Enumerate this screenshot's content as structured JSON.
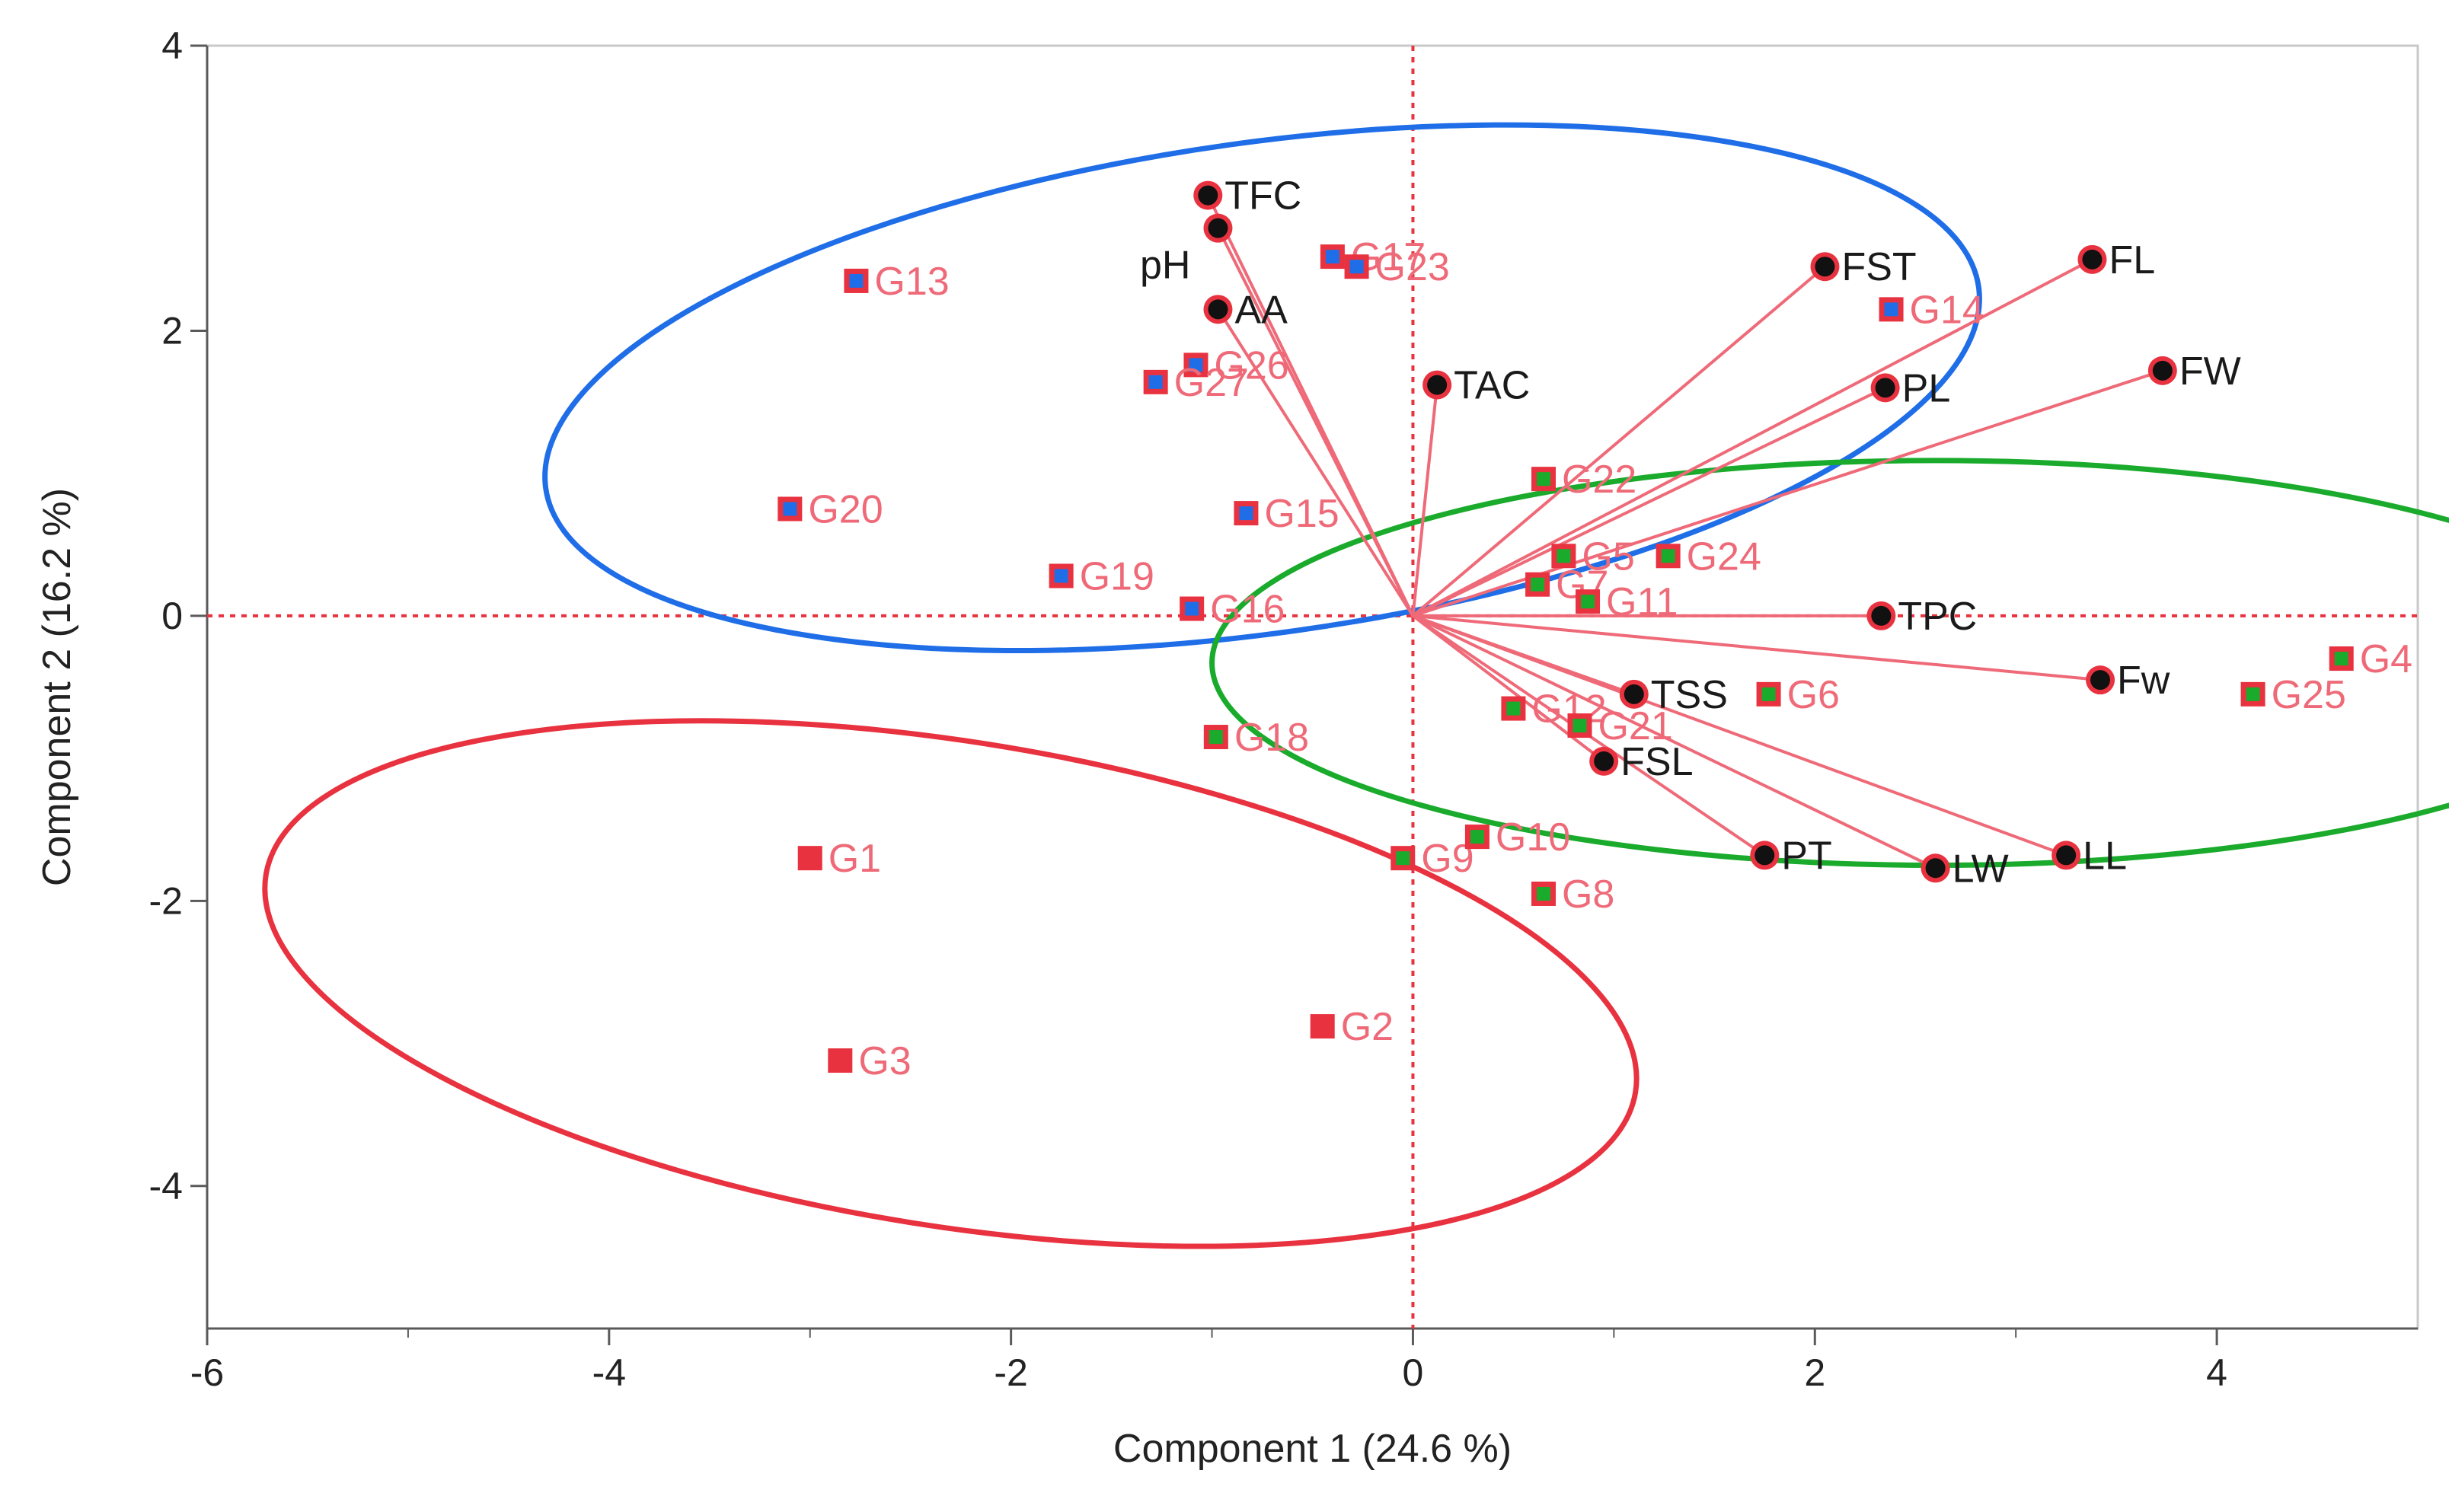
{
  "chart_data": {
    "type": "scatter",
    "subtype": "pca-biplot",
    "xlabel": "Component 1  (24.6 %)",
    "ylabel": "Component 2  (16.2 %)",
    "xlim": [
      -6,
      5
    ],
    "ylim": [
      -5,
      4
    ],
    "xticks": [
      -6,
      -4,
      -2,
      0,
      2,
      4
    ],
    "yticks": [
      -4,
      -2,
      0,
      2,
      4
    ],
    "reference_lines": {
      "x": 0,
      "y": 0,
      "style": "dotted",
      "color": "#e8323f"
    },
    "colors": {
      "cluster_blue": "#1f6ee8",
      "cluster_green": "#1aab2c",
      "cluster_red": "#e8323f",
      "vector": "#ef6a78",
      "genotype_label": "#ef6a78",
      "variable_point": "#111111",
      "variable_point_ring": "#e8323f"
    },
    "ellipses": [
      {
        "cluster": "blue",
        "cx": -0.75,
        "cy": 1.6,
        "rx": 3.6,
        "ry": 1.72,
        "angle_deg": 8
      },
      {
        "cluster": "green",
        "cx": 2.6,
        "cy": -0.33,
        "rx": 3.6,
        "ry": 1.42,
        "angle_deg": 0
      },
      {
        "cluster": "red",
        "cx": -2.3,
        "cy": -2.58,
        "rx": 3.45,
        "ry": 1.7,
        "angle_deg": -9
      }
    ],
    "genotypes": [
      {
        "name": "G1",
        "x": -3.0,
        "y": -1.7,
        "cluster": "red"
      },
      {
        "name": "G2",
        "x": -0.45,
        "y": -2.88,
        "cluster": "red"
      },
      {
        "name": "G3",
        "x": -2.85,
        "y": -3.12,
        "cluster": "red"
      },
      {
        "name": "G4",
        "x": 4.62,
        "y": -0.3,
        "cluster": "green"
      },
      {
        "name": "G5",
        "x": 0.75,
        "y": 0.42,
        "cluster": "green"
      },
      {
        "name": "G6",
        "x": 1.77,
        "y": -0.55,
        "cluster": "green"
      },
      {
        "name": "G7",
        "x": 0.62,
        "y": 0.22,
        "cluster": "green"
      },
      {
        "name": "G8",
        "x": 0.65,
        "y": -1.95,
        "cluster": "green"
      },
      {
        "name": "G9",
        "x": -0.05,
        "y": -1.7,
        "cluster": "green"
      },
      {
        "name": "G10",
        "x": 0.32,
        "y": -1.55,
        "cluster": "green"
      },
      {
        "name": "G11",
        "x": 0.87,
        "y": 0.1,
        "cluster": "green"
      },
      {
        "name": "G12",
        "x": 0.5,
        "y": -0.65,
        "cluster": "green"
      },
      {
        "name": "G13",
        "x": -2.77,
        "y": 2.35,
        "cluster": "blue"
      },
      {
        "name": "G14",
        "x": 2.38,
        "y": 2.15,
        "cluster": "blue"
      },
      {
        "name": "G15",
        "x": -0.83,
        "y": 0.72,
        "cluster": "blue"
      },
      {
        "name": "G16",
        "x": -1.1,
        "y": 0.05,
        "cluster": "blue"
      },
      {
        "name": "G17",
        "x": -0.4,
        "y": 2.52,
        "cluster": "blue"
      },
      {
        "name": "G18",
        "x": -0.98,
        "y": -0.85,
        "cluster": "green"
      },
      {
        "name": "G19",
        "x": -1.75,
        "y": 0.28,
        "cluster": "blue"
      },
      {
        "name": "G20",
        "x": -3.1,
        "y": 0.75,
        "cluster": "blue"
      },
      {
        "name": "G21",
        "x": 0.83,
        "y": -0.77,
        "cluster": "green"
      },
      {
        "name": "G22",
        "x": 0.65,
        "y": 0.96,
        "cluster": "green"
      },
      {
        "name": "G23",
        "x": -0.28,
        "y": 2.45,
        "cluster": "blue"
      },
      {
        "name": "G24",
        "x": 1.27,
        "y": 0.42,
        "cluster": "green"
      },
      {
        "name": "G25",
        "x": 4.18,
        "y": -0.55,
        "cluster": "green"
      },
      {
        "name": "G26",
        "x": -1.08,
        "y": 1.76,
        "cluster": "blue"
      },
      {
        "name": "G27",
        "x": -1.28,
        "y": 1.64,
        "cluster": "blue"
      }
    ],
    "variables": [
      {
        "name": "TFC",
        "x": -1.02,
        "y": 2.95
      },
      {
        "name": "pH",
        "x": -0.97,
        "y": 2.72
      },
      {
        "name": "AA",
        "x": -0.97,
        "y": 2.15
      },
      {
        "name": "TAC",
        "x": 0.12,
        "y": 1.62
      },
      {
        "name": "FST",
        "x": 2.05,
        "y": 2.45
      },
      {
        "name": "FL",
        "x": 3.38,
        "y": 2.5
      },
      {
        "name": "FW",
        "x": 3.73,
        "y": 1.72
      },
      {
        "name": "PL",
        "x": 2.35,
        "y": 1.6
      },
      {
        "name": "TPC",
        "x": 2.33,
        "y": 0.0
      },
      {
        "name": "Fw",
        "x": 3.42,
        "y": -0.45
      },
      {
        "name": "TSS",
        "x": 1.1,
        "y": -0.55
      },
      {
        "name": "FSL",
        "x": 0.95,
        "y": -1.02
      },
      {
        "name": "PT",
        "x": 1.75,
        "y": -1.68
      },
      {
        "name": "LW",
        "x": 2.6,
        "y": -1.77
      },
      {
        "name": "LL",
        "x": 3.25,
        "y": -1.68
      }
    ]
  }
}
